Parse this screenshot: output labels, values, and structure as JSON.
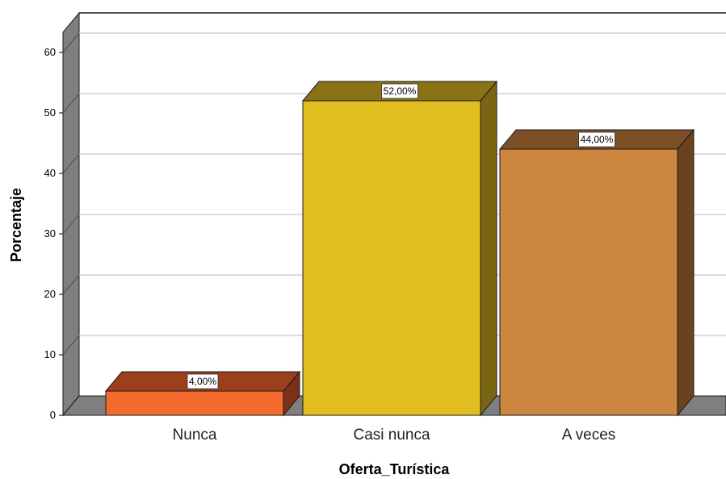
{
  "chart_data": {
    "type": "bar",
    "style": "3d",
    "categories": [
      "Nunca",
      "Casi nunca",
      "A veces"
    ],
    "values": [
      4,
      52,
      44
    ],
    "data_labels": [
      "4,00%",
      "52,00%",
      "44,00%"
    ],
    "xlabel": "Oferta_Turística",
    "ylabel": "Porcentaje",
    "ylim": [
      0,
      62
    ],
    "yticks": [
      "0",
      "10",
      "20",
      "30",
      "40",
      "50",
      "60"
    ],
    "grid": true,
    "colors": {
      "bars": [
        {
          "front": "#f26a2e",
          "top": "#9b3f1c",
          "side": "#7a3216"
        },
        {
          "front": "#e1bd20",
          "top": "#8a7316",
          "side": "#7a6612"
        },
        {
          "front": "#cc8640",
          "top": "#7d4f26",
          "side": "#6b421f"
        }
      ],
      "wall": "#7f7f7f",
      "floor": "#7f7f7f",
      "grid": "#c8c8c8"
    }
  }
}
